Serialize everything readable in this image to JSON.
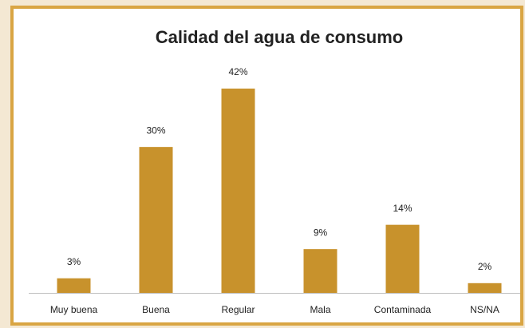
{
  "chart_data": {
    "type": "bar",
    "title": "Calidad del agua de consumo",
    "categories": [
      "Muy buena",
      "Buena",
      "Regular",
      "Mala",
      "Contaminada",
      "NS/NA"
    ],
    "values": [
      3,
      30,
      42,
      9,
      14,
      2
    ],
    "value_labels": [
      "3%",
      "30%",
      "42%",
      "9%",
      "14%",
      "2%"
    ],
    "color": "#c8922c"
  }
}
